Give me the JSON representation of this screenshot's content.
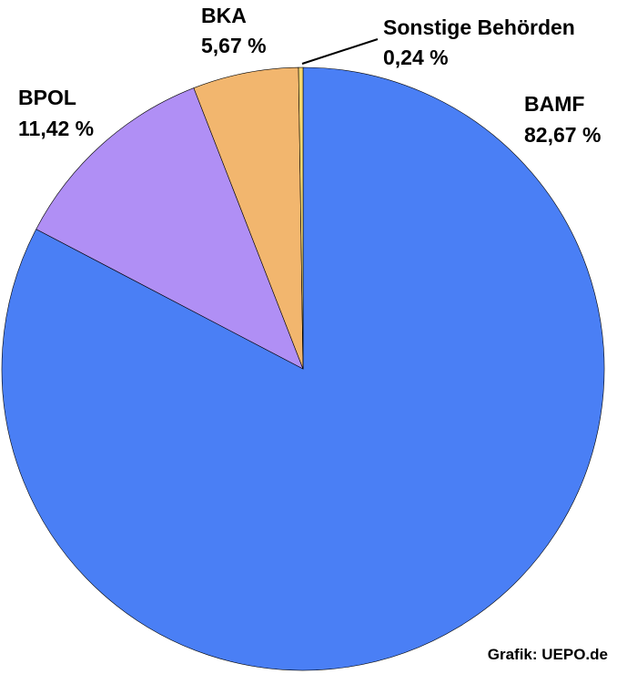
{
  "chart_data": {
    "type": "pie",
    "start": "12 o'clock",
    "direction": "clockwise",
    "slices": [
      {
        "name": "BAMF",
        "value": 82.67,
        "label": "82,67 %",
        "color": "#4a7ff5"
      },
      {
        "name": "BPOL",
        "value": 11.42,
        "label": "11,42 %",
        "color": "#b08ff5"
      },
      {
        "name": "BKA",
        "value": 5.67,
        "label": "5,67 %",
        "color": "#f2b66e"
      },
      {
        "name": "Sonstige Behörden",
        "value": 0.24,
        "label": "0,24 %",
        "color": "#f6d870"
      }
    ],
    "outline_color": "#000000"
  },
  "credit": "Grafik: UEPO.de"
}
